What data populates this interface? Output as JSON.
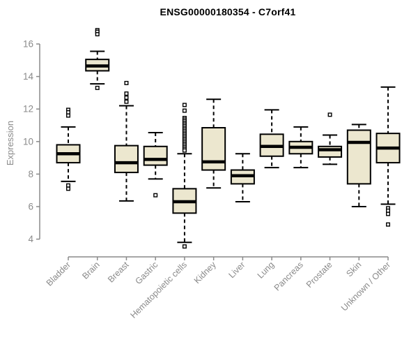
{
  "chart_data": {
    "type": "boxplot",
    "title": "ENSG00000180354 - C7orf41",
    "ylabel": "Expression",
    "xlabel": "",
    "ylim": [
      3.3,
      17.2
    ],
    "yticks": [
      4,
      6,
      8,
      10,
      12,
      14,
      16
    ],
    "grid": false,
    "legend": false,
    "categories": [
      "Bladder",
      "Brain",
      "Breast",
      "Gastric",
      "Hematopoietic cells",
      "Kidney",
      "Liver",
      "Lung",
      "Pancreas",
      "Prostate",
      "Skin",
      "Unknown / Other"
    ],
    "series": [
      {
        "name": "Bladder",
        "whisker_low": 7.55,
        "q1": 8.7,
        "median": 9.25,
        "q3": 9.8,
        "whisker_high": 10.9,
        "outliers": [
          11.95,
          11.8,
          11.6,
          7.3,
          7.1
        ]
      },
      {
        "name": "Brain",
        "whisker_low": 13.55,
        "q1": 14.35,
        "median": 14.65,
        "q3": 15.05,
        "whisker_high": 15.55,
        "outliers": [
          16.85,
          16.75,
          16.6,
          13.3
        ]
      },
      {
        "name": "Breast",
        "whisker_low": 6.35,
        "q1": 8.1,
        "median": 8.7,
        "q3": 9.75,
        "whisker_high": 12.2,
        "outliers": [
          13.6,
          12.95,
          12.7,
          12.45
        ]
      },
      {
        "name": "Gastric",
        "whisker_low": 7.7,
        "q1": 8.55,
        "median": 8.9,
        "q3": 9.7,
        "whisker_high": 10.55,
        "outliers": [
          6.7
        ]
      },
      {
        "name": "Hematopoietic cells",
        "whisker_low": 3.8,
        "q1": 5.6,
        "median": 6.3,
        "q3": 7.1,
        "whisker_high": 9.25,
        "outliers": [
          12.25,
          11.9,
          11.45,
          11.35,
          11.25,
          11.15,
          11.05,
          10.95,
          10.85,
          10.75,
          10.65,
          10.55,
          10.45,
          10.35,
          10.25,
          10.15,
          10.05,
          9.95,
          9.85,
          9.75,
          9.65,
          9.55,
          9.45,
          3.55
        ]
      },
      {
        "name": "Kidney",
        "whisker_low": 7.15,
        "q1": 8.25,
        "median": 8.75,
        "q3": 10.85,
        "whisker_high": 12.6,
        "outliers": []
      },
      {
        "name": "Liver",
        "whisker_low": 6.3,
        "q1": 7.4,
        "median": 7.9,
        "q3": 8.25,
        "whisker_high": 9.25,
        "outliers": []
      },
      {
        "name": "Lung",
        "whisker_low": 8.4,
        "q1": 9.1,
        "median": 9.7,
        "q3": 10.45,
        "whisker_high": 11.95,
        "outliers": []
      },
      {
        "name": "Pancreas",
        "whisker_low": 8.4,
        "q1": 9.25,
        "median": 9.65,
        "q3": 10.0,
        "whisker_high": 10.9,
        "outliers": []
      },
      {
        "name": "Prostate",
        "whisker_low": 8.6,
        "q1": 9.05,
        "median": 9.5,
        "q3": 9.7,
        "whisker_high": 10.4,
        "outliers": [
          11.65
        ]
      },
      {
        "name": "Skin",
        "whisker_low": 6.0,
        "q1": 7.4,
        "median": 9.95,
        "q3": 10.7,
        "whisker_high": 11.05,
        "outliers": []
      },
      {
        "name": "Unknown / Other",
        "whisker_low": 6.15,
        "q1": 8.7,
        "median": 9.6,
        "q3": 10.5,
        "whisker_high": 13.35,
        "outliers": [
          5.9,
          5.75,
          5.55,
          4.9
        ]
      }
    ],
    "colors": {
      "box_fill": "#ece7cf",
      "box_stroke": "#000000",
      "median": "#000000",
      "whisker": "#000000",
      "outlier_stroke": "#000000",
      "outlier_fill": "#ffffff",
      "axis": "#8a8a8a",
      "tick_label": "#8a8a8a",
      "title": "#000000"
    }
  }
}
